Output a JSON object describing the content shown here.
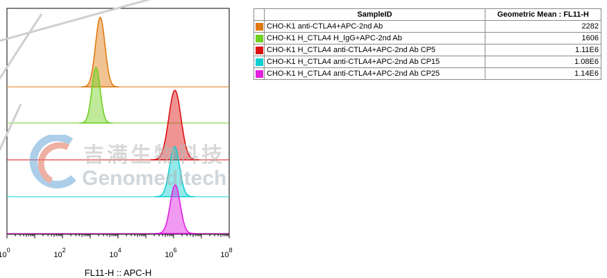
{
  "chart_data": {
    "type": "histogram-overlay",
    "xlabel": "FL11-H :: APC-H",
    "x_scale": "log",
    "xlim": [
      1,
      100000000
    ],
    "x_ticks": [
      {
        "base": "10",
        "exp": "0",
        "value": 1
      },
      {
        "base": "10",
        "exp": "2",
        "value": 100
      },
      {
        "base": "10",
        "exp": "4",
        "value": 10000
      },
      {
        "base": "10",
        "exp": "6",
        "value": 1000000
      },
      {
        "base": "10",
        "exp": "8",
        "value": 100000000
      }
    ],
    "series": [
      {
        "name": "CHO-K1 anti-CTLA4+APC-2nd Ab",
        "color": "#e07a10",
        "peak_x": 2282,
        "geometric_mean": "2282"
      },
      {
        "name": "CHO-K1 H_CTLA4 H_IgG+APC-2nd Ab",
        "color": "#6fd020",
        "peak_x": 1606,
        "geometric_mean": "1606"
      },
      {
        "name": "CHO-K1 H_CTLA4 anti-CTLA4+APC-2nd Ab CP5",
        "color": "#dd1010",
        "peak_x": 1110000,
        "geometric_mean": "1.11E6"
      },
      {
        "name": "CHO-K1 H_CTLA4 anti-CTLA4+APC-2nd Ab CP15",
        "color": "#10d0d0",
        "peak_x": 1080000,
        "geometric_mean": "1.08E6"
      },
      {
        "name": "CHO-K1 H_CTLA4 anti-CTLA4+APC-2nd Ab CP25",
        "color": "#e020e0",
        "peak_x": 1140000,
        "geometric_mean": "1.14E6"
      }
    ]
  },
  "legend": {
    "header_sample": "SampleID",
    "header_mean": "Geometric Mean : FL11-H"
  },
  "watermark": {
    "cn": "吉满生物科技",
    "en": "Genomeditech"
  }
}
